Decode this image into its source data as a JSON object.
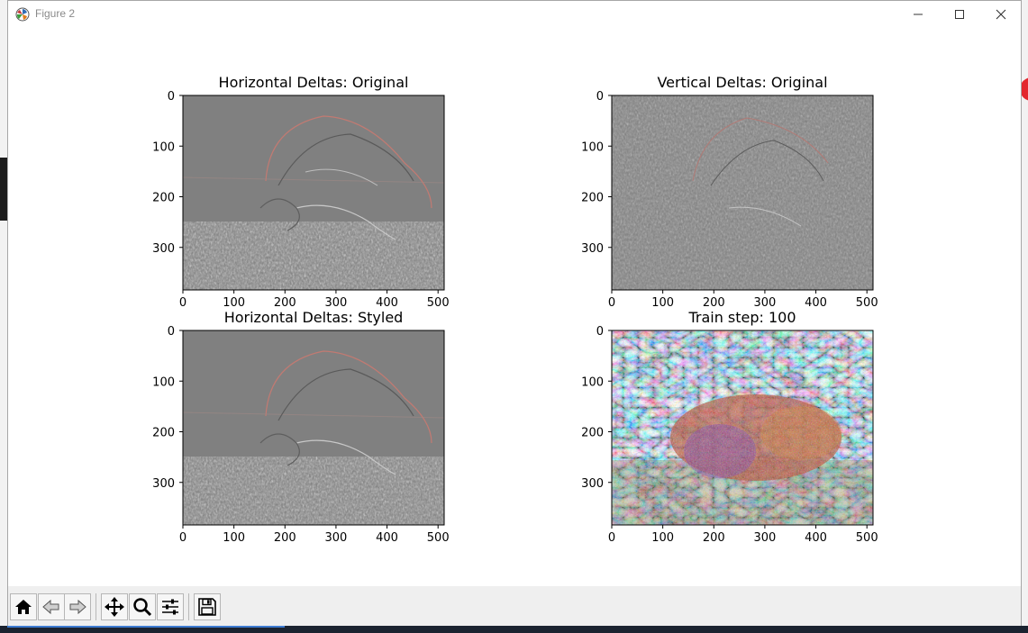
{
  "window": {
    "title": "Figure 2",
    "controls": [
      "minimize",
      "maximize",
      "close"
    ]
  },
  "icons": {
    "app": "matplotlib-icon",
    "minimize": "minimize-icon",
    "maximize": "maximize-icon",
    "close": "close-icon"
  },
  "toolbar": {
    "buttons": [
      {
        "name": "home",
        "icon": "home-icon"
      },
      {
        "name": "back",
        "icon": "back-arrow-icon"
      },
      {
        "name": "forward",
        "icon": "forward-arrow-icon"
      },
      {
        "name": "pan",
        "icon": "move-icon"
      },
      {
        "name": "zoom",
        "icon": "magnifier-icon"
      },
      {
        "name": "configure-subplots",
        "icon": "sliders-icon"
      },
      {
        "name": "save",
        "icon": "floppy-disk-icon"
      }
    ]
  },
  "figure": {
    "subplots": [
      {
        "title": "Horizontal Deltas: Original",
        "image": "horizontal edge-delta map of sea turtle (grey)"
      },
      {
        "title": "Vertical Deltas: Original",
        "image": "vertical edge-delta map of sea turtle (grey)"
      },
      {
        "title": "Horizontal Deltas: Styled",
        "image": "horizontal edge-delta map of styled sea turtle (grey)"
      },
      {
        "title": "Train step: 100",
        "image": "style-transferred sea turtle, colorful mosaic"
      }
    ],
    "x_ticks": [
      "0",
      "100",
      "200",
      "300",
      "400",
      "500"
    ],
    "y_ticks": [
      "0",
      "100",
      "200",
      "300"
    ],
    "x_range": [
      0,
      512
    ],
    "y_range": [
      384,
      0
    ]
  },
  "colors": {
    "delta_grey": "#808080",
    "close_x": "#333333"
  }
}
